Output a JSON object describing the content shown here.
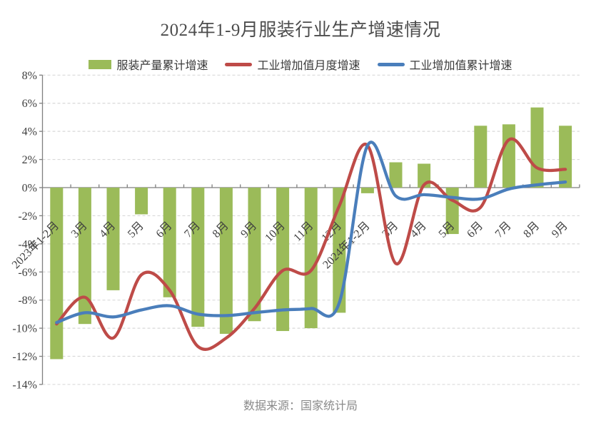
{
  "title": "2024年1-9月服装行业生产增速情况",
  "source": "数据来源：国家统计局",
  "legend": {
    "bar_label": "服装产量累计增速",
    "monthly_label": "工业增加值月度增速",
    "cumulative_label": "工业增加值累计增速"
  },
  "colors": {
    "bar": "#9BBB59",
    "monthly": "#BE4B48",
    "cumulative": "#4A7EBB",
    "grid": "#D9D9D9",
    "axis": "#7F7F7F",
    "axis_text": "#3f3f3f",
    "title_text": "#4c4c4c",
    "source_text": "#8a8a8a"
  },
  "chart_data": {
    "type": "bar+line",
    "title": "2024年1-9月服装行业生产增速情况",
    "categories": [
      "2023年1-2月",
      "3月",
      "4月",
      "5月",
      "6月",
      "7月",
      "8月",
      "9月",
      "10月",
      "11月",
      "12月",
      "2024年1-2月",
      "3月",
      "4月",
      "5月",
      "6月",
      "7月",
      "8月",
      "9月"
    ],
    "series": [
      {
        "name": "服装产量累计增速",
        "type": "bar",
        "color": "#9BBB59",
        "values": [
          -12.2,
          -9.7,
          -7.3,
          -1.9,
          -7.8,
          -9.9,
          -10.4,
          -9.5,
          -10.2,
          -10.0,
          -8.9,
          -0.4,
          1.8,
          1.7,
          -3.3,
          4.4,
          4.5,
          5.7,
          4.4
        ]
      },
      {
        "name": "工业增加值月度增速",
        "type": "line",
        "color": "#BE4B48",
        "values": [
          -9.7,
          -7.8,
          -10.7,
          -6.2,
          -7.3,
          -11.3,
          -10.7,
          -8.6,
          -5.9,
          -5.9,
          -1.3,
          3.0,
          -5.4,
          0.2,
          -0.9,
          -1.4,
          3.4,
          1.4,
          1.3
        ]
      },
      {
        "name": "工业增加值累计增速",
        "type": "line",
        "color": "#4A7EBB",
        "values": [
          -9.6,
          -8.9,
          -9.2,
          -8.7,
          -8.4,
          -9.0,
          -9.1,
          -8.9,
          -8.7,
          -8.6,
          -8.2,
          3.0,
          -0.6,
          -0.5,
          -0.7,
          -0.8,
          -0.1,
          0.2,
          0.4
        ]
      }
    ],
    "ylim": [
      -14,
      8
    ],
    "y_ticks": [
      {
        "value": 8,
        "label": "8%"
      },
      {
        "value": 6,
        "label": "6%"
      },
      {
        "value": 4,
        "label": "4%"
      },
      {
        "value": 2,
        "label": "2%"
      },
      {
        "value": 0,
        "label": "0%"
      },
      {
        "value": -2,
        "label": "-2%"
      },
      {
        "value": -4,
        "label": "-4%"
      },
      {
        "value": -6,
        "label": "-6%"
      },
      {
        "value": -8,
        "label": "-8%"
      },
      {
        "value": -10,
        "label": "-10%"
      },
      {
        "value": -12,
        "label": "-12%"
      },
      {
        "value": -14,
        "label": "-14%"
      }
    ],
    "grid": true,
    "legend_position": "top",
    "smooth_lines": true,
    "xlabel": "",
    "ylabel": ""
  }
}
